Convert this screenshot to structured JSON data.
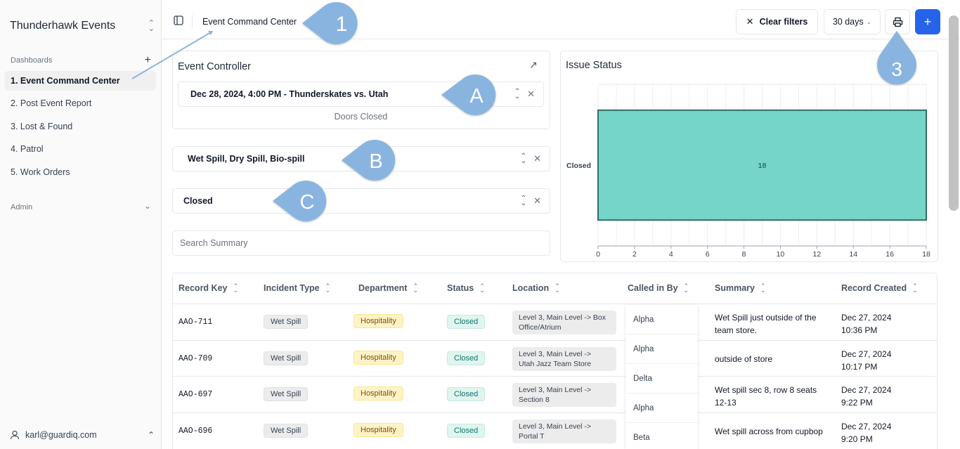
{
  "sidebar": {
    "org_name": "Thunderhawk Events",
    "dashboards_label": "Dashboards",
    "items": [
      {
        "label": "1. Event Command Center",
        "active": true
      },
      {
        "label": "2. Post Event Report",
        "active": false
      },
      {
        "label": "3. Lost & Found",
        "active": false
      },
      {
        "label": "4. Patrol",
        "active": false
      },
      {
        "label": "5. Work Orders",
        "active": false
      }
    ],
    "admin_label": "Admin",
    "user_email": "karl@guardiq.com"
  },
  "header": {
    "breadcrumb": "Event Command Center",
    "clear_filters_label": "Clear filters",
    "range_label": "30 days",
    "add_label": "+"
  },
  "event_controller": {
    "title": "Event Controller",
    "event_value": "Dec 28, 2024, 4:00 PM - Thunderskates vs. Utah",
    "event_status": "Doors Closed"
  },
  "filters": {
    "incident_types": "Wet Spill, Dry Spill, Bio-spill",
    "status": "Closed",
    "search_placeholder": "Search Summary"
  },
  "issue_status": {
    "title": "Issue Status"
  },
  "chart_data": {
    "type": "bar",
    "orientation": "horizontal",
    "categories": [
      "Closed"
    ],
    "values": [
      18
    ],
    "data_labels": [
      "18"
    ],
    "xlim": [
      0,
      18
    ],
    "xticks": [
      0,
      2,
      4,
      6,
      8,
      10,
      12,
      14,
      16,
      18
    ],
    "grid": true,
    "bar_color": "#76d5c9",
    "bar_edge_color": "#2f6f63"
  },
  "table": {
    "columns": [
      "Record Key",
      "Incident Type",
      "Department",
      "Status",
      "Location",
      "Called in By",
      "Summary",
      "Record Created"
    ],
    "rows": [
      {
        "key": "AAO-711",
        "type": "Wet Spill",
        "dept": "Hospitality",
        "status": "Closed",
        "loc1": "Level 3, Main Level -> Box",
        "loc2": "Office/Atrium",
        "caller": "Alpha",
        "sum1": "Wet Spill just outside of the",
        "sum2": "team store.",
        "date": "Dec 27, 2024",
        "time": "10:36 PM"
      },
      {
        "key": "AAO-709",
        "type": "Wet Spill",
        "dept": "Hospitality",
        "status": "Closed",
        "loc1": "Level 3, Main Level ->",
        "loc2": "Utah Jazz Team Store",
        "caller": "Alpha",
        "sum1": "outside of store",
        "sum2": "",
        "date": "Dec 27, 2024",
        "time": "10:17 PM"
      },
      {
        "key": "AAO-697",
        "type": "Wet Spill",
        "dept": "Hospitality",
        "status": "Closed",
        "loc1": "Level 3, Main Level ->",
        "loc2": "Section 8",
        "caller": "Delta",
        "sum1": "Wet spill sec 8, row 8 seats",
        "sum2": "12-13",
        "date": "Dec 27, 2024",
        "time": "9:22 PM"
      },
      {
        "key": "AAO-696",
        "type": "Wet Spill",
        "dept": "Hospitality",
        "status": "Closed",
        "loc1": "Level 3, Main Level ->",
        "loc2": "Portal T",
        "caller": "Alpha",
        "sum1": "Wet spill across from cupbop",
        "sum2": "",
        "date": "Dec 27, 2024",
        "time": "9:20 PM"
      }
    ],
    "extra_callers": [
      "Beta"
    ]
  },
  "annotations": [
    "1",
    "A",
    "B",
    "C",
    "3"
  ],
  "colors": {
    "accent": "#2563eb",
    "annotation": "#8ab4e0"
  }
}
